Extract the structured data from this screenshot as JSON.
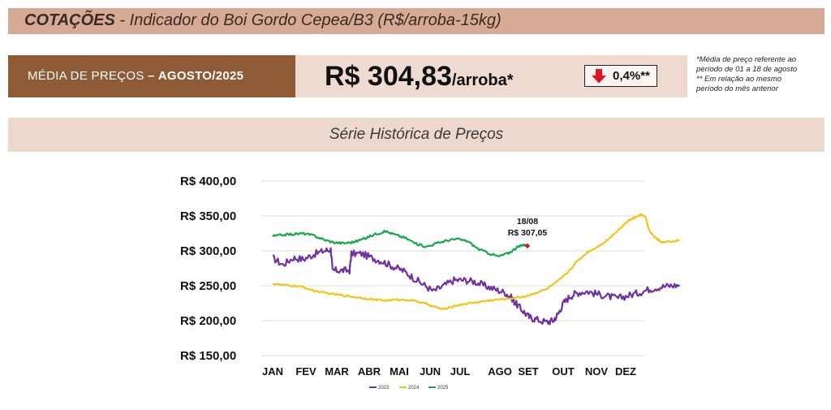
{
  "header": {
    "title_bold": "COTAÇÕES",
    "title_rest": " - Indicador do Boi Gordo Cepea/B3 (R$/arroba-15kg)"
  },
  "summary": {
    "label_prefix": "MÉDIA DE PREÇOS ",
    "label_period": "– AGOSTO/2025",
    "price": "R$ 304,83",
    "price_unit": "/arroba*",
    "change": "0,4%**",
    "change_direction": "down",
    "down_color": "#e0141e"
  },
  "notes": [
    "*Média de preço referente ao",
    "período de 01 a 18 de agosto",
    "** Em relação ao mesmo",
    "período do mês anterior"
  ],
  "series_title": "Série Histórica de Preços",
  "chart_data": {
    "type": "line",
    "title": "Série Histórica de Preços",
    "xlabel": "",
    "ylabel": "",
    "ylim": [
      150,
      400
    ],
    "yticks": [
      {
        "value": 400,
        "label": "R$ 400,00"
      },
      {
        "value": 350,
        "label": "R$ 350,00"
      },
      {
        "value": 300,
        "label": "R$ 300,00"
      },
      {
        "value": 250,
        "label": "R$ 250,00"
      },
      {
        "value": 200,
        "label": "R$ 200,00"
      },
      {
        "value": 150,
        "label": "R$ 150,00"
      }
    ],
    "categories": [
      "JAN",
      "FEV",
      "MAR",
      "ABR",
      "MAI",
      "JUN",
      "JUL",
      "AGO",
      "SET",
      "OUT",
      "NOV",
      "DEZ"
    ],
    "grid": true,
    "legend_position": "bottom",
    "series": [
      {
        "name": "2023",
        "color": "#7030a0",
        "points": [
          [
            0,
            290
          ],
          [
            0.3,
            280
          ],
          [
            0.6,
            290
          ],
          [
            0.9,
            288
          ],
          [
            1.2,
            295
          ],
          [
            1.5,
            300
          ],
          [
            1.7,
            302
          ],
          [
            1.75,
            272
          ],
          [
            2.0,
            272
          ],
          [
            2.25,
            272
          ],
          [
            2.3,
            296
          ],
          [
            2.6,
            296
          ],
          [
            2.9,
            290
          ],
          [
            3.2,
            285
          ],
          [
            3.5,
            278
          ],
          [
            3.8,
            272
          ],
          [
            4.1,
            262
          ],
          [
            4.4,
            252
          ],
          [
            4.7,
            242
          ],
          [
            5.0,
            250
          ],
          [
            5.3,
            258
          ],
          [
            5.6,
            258
          ],
          [
            5.9,
            256
          ],
          [
            6.2,
            250
          ],
          [
            6.5,
            245
          ],
          [
            6.8,
            240
          ],
          [
            7.0,
            232
          ],
          [
            7.1,
            225
          ],
          [
            7.3,
            215
          ],
          [
            7.5,
            205
          ],
          [
            7.7,
            202
          ],
          [
            8.0,
            198
          ],
          [
            8.2,
            200
          ],
          [
            8.35,
            210
          ],
          [
            8.5,
            225
          ],
          [
            8.7,
            235
          ],
          [
            8.9,
            240
          ],
          [
            9.2,
            242
          ],
          [
            9.5,
            238
          ],
          [
            9.8,
            235
          ],
          [
            10.1,
            232
          ],
          [
            10.4,
            236
          ],
          [
            10.7,
            240
          ],
          [
            11.0,
            245
          ],
          [
            11.3,
            248
          ],
          [
            11.6,
            250
          ],
          [
            11.9,
            251
          ]
        ]
      },
      {
        "name": "2024",
        "color": "#f2c318",
        "points": [
          [
            0,
            253
          ],
          [
            0.3,
            251
          ],
          [
            0.6,
            250
          ],
          [
            0.9,
            248
          ],
          [
            1.2,
            243
          ],
          [
            1.5,
            240
          ],
          [
            1.8,
            238
          ],
          [
            2.1,
            236
          ],
          [
            2.4,
            234
          ],
          [
            2.7,
            232
          ],
          [
            3.0,
            230
          ],
          [
            3.3,
            229
          ],
          [
            3.6,
            230
          ],
          [
            3.9,
            230
          ],
          [
            4.2,
            228
          ],
          [
            4.5,
            224
          ],
          [
            4.8,
            219
          ],
          [
            5.0,
            216
          ],
          [
            5.3,
            221
          ],
          [
            5.6,
            224
          ],
          [
            5.9,
            226
          ],
          [
            6.2,
            228
          ],
          [
            6.5,
            230
          ],
          [
            6.8,
            231
          ],
          [
            7.1,
            233
          ],
          [
            7.4,
            235
          ],
          [
            7.7,
            240
          ],
          [
            8.0,
            245
          ],
          [
            8.3,
            255
          ],
          [
            8.6,
            268
          ],
          [
            8.9,
            285
          ],
          [
            9.2,
            298
          ],
          [
            9.5,
            306
          ],
          [
            9.8,
            316
          ],
          [
            10.1,
            330
          ],
          [
            10.4,
            343
          ],
          [
            10.6,
            348
          ],
          [
            10.75,
            352
          ],
          [
            10.9,
            350
          ],
          [
            11.0,
            330
          ],
          [
            11.2,
            318
          ],
          [
            11.4,
            312
          ],
          [
            11.6,
            313
          ],
          [
            11.9,
            315
          ]
        ]
      },
      {
        "name": "2025",
        "color": "#1aa64a",
        "points": [
          [
            0,
            321
          ],
          [
            0.3,
            323
          ],
          [
            0.6,
            324
          ],
          [
            0.9,
            325
          ],
          [
            1.2,
            322
          ],
          [
            1.5,
            316
          ],
          [
            1.8,
            312
          ],
          [
            2.1,
            311
          ],
          [
            2.4,
            313
          ],
          [
            2.7,
            318
          ],
          [
            3.0,
            324
          ],
          [
            3.3,
            328
          ],
          [
            3.6,
            323
          ],
          [
            3.9,
            318
          ],
          [
            4.2,
            310
          ],
          [
            4.5,
            306
          ],
          [
            4.8,
            311
          ],
          [
            5.1,
            315
          ],
          [
            5.4,
            317
          ],
          [
            5.7,
            314
          ],
          [
            6.0,
            303
          ],
          [
            6.3,
            297
          ],
          [
            6.6,
            292
          ],
          [
            6.9,
            297
          ],
          [
            7.15,
            305
          ],
          [
            7.35,
            309
          ],
          [
            7.45,
            307.05
          ]
        ]
      }
    ],
    "annotation": {
      "x": 7.45,
      "y": 307.05,
      "date": "18/08",
      "value": "R$ 307,05",
      "marker_color": "#e0141e"
    }
  }
}
